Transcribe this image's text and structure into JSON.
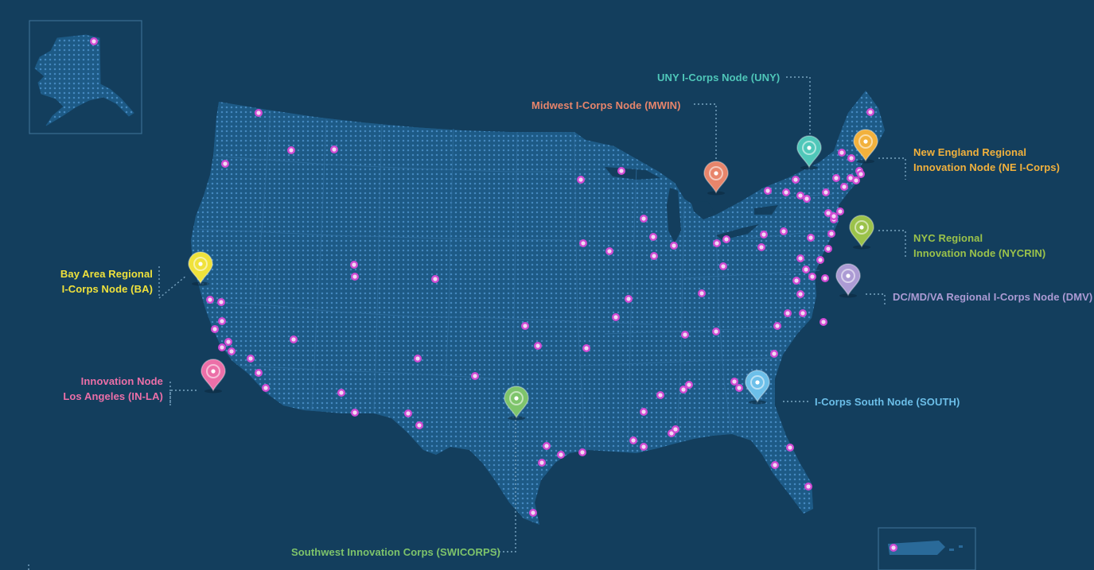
{
  "colors": {
    "background": "#133e5d",
    "land": "#1d5a86",
    "dots": "#3b80b6",
    "site_marker": "#d04ad3",
    "inset_border": "#3b6e92",
    "leader": "#7aa5c2"
  },
  "nodes": [
    {
      "id": "uny",
      "lines": [
        "UNY I-Corps Node (UNY)"
      ],
      "color": "#4fc7b9",
      "pin": "teal"
    },
    {
      "id": "mwin",
      "lines": [
        "Midwest I-Corps Node (MWIN)"
      ],
      "color": "#e8856b",
      "pin": "red"
    },
    {
      "id": "ne",
      "lines": [
        "New England Regional",
        "Innovation Node (NE I-Corps)"
      ],
      "color": "#f2b13c",
      "pin": "orange"
    },
    {
      "id": "nycrin",
      "lines": [
        "NYC Regional",
        "Innovation Node (NYCRIN)"
      ],
      "color": "#9bc24a",
      "pin": "lime"
    },
    {
      "id": "dmv",
      "lines": [
        "DC/MD/VA Regional I-Corps Node (DMV)"
      ],
      "color": "#ac9bd4",
      "pin": "lavender"
    },
    {
      "id": "ba",
      "lines": [
        "Bay Area Regional",
        "I-Corps Node (BA)"
      ],
      "color": "#f0e23b",
      "pin": "yellow"
    },
    {
      "id": "inla",
      "lines": [
        "Innovation Node",
        "Los Angeles (IN-LA)"
      ],
      "color": "#ec6fa8",
      "pin": "pink"
    },
    {
      "id": "south",
      "lines": [
        "I-Corps South Node (SOUTH)"
      ],
      "color": "#6cbfe9",
      "pin": "lightblue"
    },
    {
      "id": "swicorps",
      "lines": [
        "Southwest Innovation Corps (SWICORPS)"
      ],
      "color": "#7ec46b",
      "pin": "green"
    }
  ],
  "icons": {
    "node_pin": "map-pin-icon",
    "site_marker": "location-dot-icon"
  }
}
